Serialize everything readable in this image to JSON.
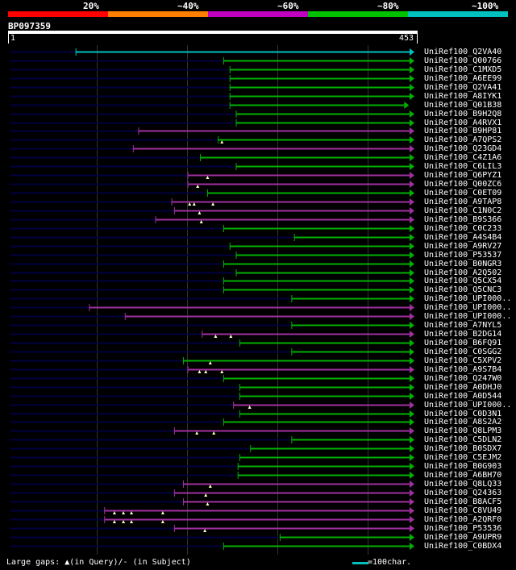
{
  "legend": [
    {
      "label": "20%",
      "color": "#ff0000",
      "pos": "20"
    },
    {
      "label": "~40%",
      "color": "#ff7f00",
      "pos": "40"
    },
    {
      "label": "~60%",
      "color": "#c000c0",
      "pos": "60"
    },
    {
      "label": "~80%",
      "color": "#00c000",
      "pos": "80"
    },
    {
      "label": "~100%",
      "color": "#00c0c0",
      "pos": "100"
    }
  ],
  "query": {
    "id": "BP097359",
    "start_label": "1",
    "end_label": "453",
    "length": 453
  },
  "palette": {
    "c80": "#00b000",
    "c60": "#a030a0",
    "c100": "#00c0c0",
    "base": "#000040"
  },
  "hits": [
    {
      "name": "UniRef100_Q2VA40",
      "q_start": 75,
      "q_end": 453,
      "color": "c100",
      "gaps": []
    },
    {
      "name": "UniRef100_Q00766",
      "q_start": 240,
      "q_end": 453,
      "color": "c80",
      "gaps": []
    },
    {
      "name": "UniRef100_C1MXD5",
      "q_start": 247,
      "q_end": 453,
      "color": "c80",
      "gaps": []
    },
    {
      "name": "UniRef100_A6EE99",
      "q_start": 247,
      "q_end": 453,
      "color": "c80",
      "gaps": []
    },
    {
      "name": "UniRef100_Q2VA41",
      "q_start": 247,
      "q_end": 453,
      "color": "c80",
      "gaps": []
    },
    {
      "name": "UniRef100_A8IYK1",
      "q_start": 247,
      "q_end": 453,
      "color": "c80",
      "gaps": []
    },
    {
      "name": "UniRef100_Q01B38",
      "q_start": 247,
      "q_end": 447,
      "color": "c80",
      "gaps": []
    },
    {
      "name": "UniRef100_B9H2Q8",
      "q_start": 254,
      "q_end": 453,
      "color": "c80",
      "gaps": []
    },
    {
      "name": "UniRef100_A4RVX1",
      "q_start": 254,
      "q_end": 453,
      "color": "c80",
      "gaps": []
    },
    {
      "name": "UniRef100_B9HP81",
      "q_start": 145,
      "q_end": 453,
      "color": "c60",
      "gaps": []
    },
    {
      "name": "UniRef100_A7QPS2",
      "q_start": 234,
      "q_end": 453,
      "color": "c80",
      "gaps": [
        238
      ]
    },
    {
      "name": "UniRef100_Q23GD4",
      "q_start": 139,
      "q_end": 453,
      "color": "c60",
      "gaps": []
    },
    {
      "name": "UniRef100_C4Z1A6",
      "q_start": 214,
      "q_end": 453,
      "color": "c80",
      "gaps": []
    },
    {
      "name": "UniRef100_C6LIL3",
      "q_start": 254,
      "q_end": 453,
      "color": "c80",
      "gaps": []
    },
    {
      "name": "UniRef100_Q6PYZ1",
      "q_start": 200,
      "q_end": 453,
      "color": "c60",
      "gaps": [
        222
      ]
    },
    {
      "name": "UniRef100_Q00ZC6",
      "q_start": 200,
      "q_end": 453,
      "color": "c60",
      "gaps": [
        211
      ]
    },
    {
      "name": "UniRef100_C0ET09",
      "q_start": 222,
      "q_end": 453,
      "color": "c80",
      "gaps": []
    },
    {
      "name": "UniRef100_A9TAP8",
      "q_start": 182,
      "q_end": 453,
      "color": "c60",
      "gaps": [
        202,
        207,
        228
      ]
    },
    {
      "name": "UniRef100_C1N0C2",
      "q_start": 185,
      "q_end": 453,
      "color": "c60",
      "gaps": [
        213
      ]
    },
    {
      "name": "UniRef100_B9S366",
      "q_start": 164,
      "q_end": 453,
      "color": "c60",
      "gaps": [
        215
      ]
    },
    {
      "name": "UniRef100_C0C233",
      "q_start": 240,
      "q_end": 453,
      "color": "c80",
      "gaps": []
    },
    {
      "name": "UniRef100_A4S4B4",
      "q_start": 319,
      "q_end": 453,
      "color": "c80",
      "gaps": []
    },
    {
      "name": "UniRef100_A9RV27",
      "q_start": 247,
      "q_end": 453,
      "color": "c80",
      "gaps": []
    },
    {
      "name": "UniRef100_P53537",
      "q_start": 254,
      "q_end": 453,
      "color": "c80",
      "gaps": []
    },
    {
      "name": "UniRef100_B0NGR3",
      "q_start": 240,
      "q_end": 453,
      "color": "c80",
      "gaps": []
    },
    {
      "name": "UniRef100_A2Q502",
      "q_start": 254,
      "q_end": 453,
      "color": "c80",
      "gaps": []
    },
    {
      "name": "UniRef100_Q5CX54",
      "q_start": 240,
      "q_end": 453,
      "color": "c80",
      "gaps": []
    },
    {
      "name": "UniRef100_Q5CNC3",
      "q_start": 240,
      "q_end": 453,
      "color": "c80",
      "gaps": []
    },
    {
      "name": "UniRef100_UPI000..",
      "q_start": 316,
      "q_end": 453,
      "color": "c80",
      "gaps": []
    },
    {
      "name": "UniRef100_UPI000..",
      "q_start": 90,
      "q_end": 453,
      "color": "c60",
      "gaps": []
    },
    {
      "name": "UniRef100_UPI000..",
      "q_start": 130,
      "q_end": 453,
      "color": "c60",
      "gaps": []
    },
    {
      "name": "UniRef100_A7NYL5",
      "q_start": 316,
      "q_end": 453,
      "color": "c80",
      "gaps": []
    },
    {
      "name": "UniRef100_B2DG14",
      "q_start": 216,
      "q_end": 453,
      "color": "c60",
      "gaps": [
        231,
        248
      ]
    },
    {
      "name": "UniRef100_B6FQ91",
      "q_start": 258,
      "q_end": 453,
      "color": "c80",
      "gaps": []
    },
    {
      "name": "UniRef100_C0SGG2",
      "q_start": 316,
      "q_end": 453,
      "color": "c80",
      "gaps": []
    },
    {
      "name": "UniRef100_C5XPV2",
      "q_start": 195,
      "q_end": 453,
      "color": "c80",
      "gaps": [
        225
      ]
    },
    {
      "name": "UniRef100_A9S7B4",
      "q_start": 200,
      "q_end": 453,
      "color": "c60",
      "gaps": [
        213,
        220,
        238
      ]
    },
    {
      "name": "UniRef100_Q247W0",
      "q_start": 240,
      "q_end": 453,
      "color": "c80",
      "gaps": []
    },
    {
      "name": "UniRef100_A0DHJ0",
      "q_start": 258,
      "q_end": 453,
      "color": "c80",
      "gaps": []
    },
    {
      "name": "UniRef100_A0D544",
      "q_start": 258,
      "q_end": 453,
      "color": "c80",
      "gaps": []
    },
    {
      "name": "UniRef100_UPI000..",
      "q_start": 251,
      "q_end": 453,
      "color": "c60",
      "gaps": [
        269
      ]
    },
    {
      "name": "UniRef100_C0D3N1",
      "q_start": 258,
      "q_end": 453,
      "color": "c80",
      "gaps": []
    },
    {
      "name": "UniRef100_A8S2A2",
      "q_start": 240,
      "q_end": 453,
      "color": "c80",
      "gaps": []
    },
    {
      "name": "UniRef100_Q8LPM3",
      "q_start": 185,
      "q_end": 453,
      "color": "c60",
      "gaps": [
        210,
        229
      ]
    },
    {
      "name": "UniRef100_C5DLN2",
      "q_start": 316,
      "q_end": 453,
      "color": "c80",
      "gaps": []
    },
    {
      "name": "UniRef100_B0SDX7",
      "q_start": 270,
      "q_end": 453,
      "color": "c80",
      "gaps": []
    },
    {
      "name": "UniRef100_C5EJM2",
      "q_start": 258,
      "q_end": 453,
      "color": "c80",
      "gaps": []
    },
    {
      "name": "UniRef100_B0G903",
      "q_start": 256,
      "q_end": 453,
      "color": "c80",
      "gaps": []
    },
    {
      "name": "UniRef100_A6BH70",
      "q_start": 256,
      "q_end": 453,
      "color": "c80",
      "gaps": []
    },
    {
      "name": "UniRef100_Q8LQ33",
      "q_start": 195,
      "q_end": 453,
      "color": "c60",
      "gaps": [
        225
      ]
    },
    {
      "name": "UniRef100_Q24363",
      "q_start": 185,
      "q_end": 453,
      "color": "c60",
      "gaps": [
        220
      ]
    },
    {
      "name": "UniRef100_B8ACF5",
      "q_start": 195,
      "q_end": 453,
      "color": "c60",
      "gaps": [
        222
      ]
    },
    {
      "name": "UniRef100_C8VU49",
      "q_start": 107,
      "q_end": 453,
      "color": "c60",
      "gaps": [
        118,
        128,
        137,
        172
      ]
    },
    {
      "name": "UniRef100_A2QRF0",
      "q_start": 107,
      "q_end": 453,
      "color": "c60",
      "gaps": [
        118,
        128,
        137,
        172
      ]
    },
    {
      "name": "UniRef100_P53536",
      "q_start": 185,
      "q_end": 453,
      "color": "c60",
      "gaps": [
        219
      ]
    },
    {
      "name": "UniRef100_A9UPR9",
      "q_start": 303,
      "q_end": 453,
      "color": "c80",
      "gaps": []
    },
    {
      "name": "UniRef100_C0BDX4",
      "q_start": 240,
      "q_end": 453,
      "color": "c80",
      "gaps": []
    }
  ],
  "footer": {
    "gap_text": "Large gaps: ▲(in Query)/- (in Subject)",
    "scale_text": "=100char."
  }
}
